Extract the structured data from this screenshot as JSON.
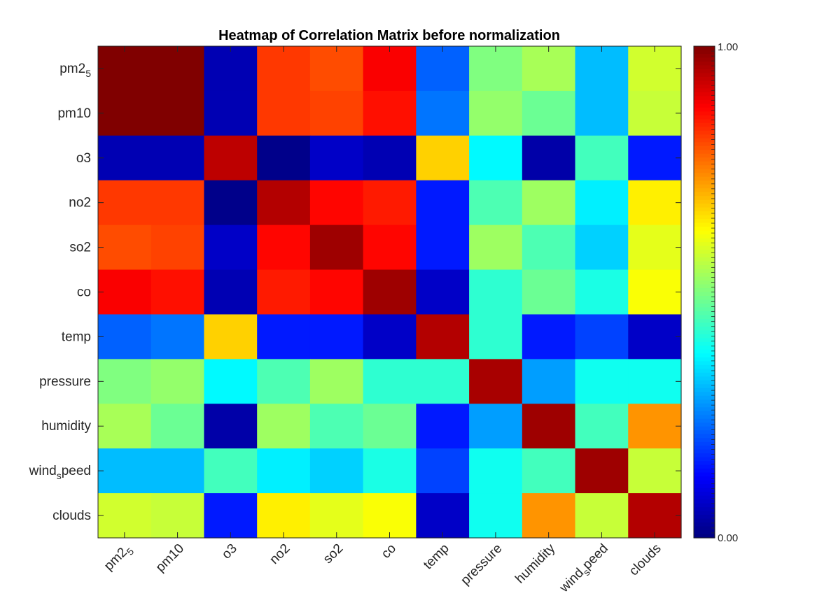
{
  "chart_data": {
    "type": "heatmap",
    "title": "Heatmap of Correlation Matrix before normalization",
    "colormap": "jet",
    "clim": [
      0,
      1
    ],
    "row_labels": [
      {
        "base": "pm2",
        "sub": "5"
      },
      {
        "base": "pm10",
        "sub": ""
      },
      {
        "base": "o3",
        "sub": ""
      },
      {
        "base": "no2",
        "sub": ""
      },
      {
        "base": "so2",
        "sub": ""
      },
      {
        "base": "co",
        "sub": ""
      },
      {
        "base": "temp",
        "sub": ""
      },
      {
        "base": "pressure",
        "sub": ""
      },
      {
        "base": "humidity",
        "sub": ""
      },
      {
        "base": "wind",
        "sub": "s",
        "tail": "peed"
      },
      {
        "base": "clouds",
        "sub": ""
      }
    ],
    "col_labels": [
      {
        "base": "pm2",
        "sub": "5"
      },
      {
        "base": "pm10",
        "sub": ""
      },
      {
        "base": "o3",
        "sub": ""
      },
      {
        "base": "no2",
        "sub": ""
      },
      {
        "base": "so2",
        "sub": ""
      },
      {
        "base": "co",
        "sub": ""
      },
      {
        "base": "temp",
        "sub": ""
      },
      {
        "base": "pressure",
        "sub": ""
      },
      {
        "base": "humidity",
        "sub": ""
      },
      {
        "base": "wind",
        "sub": "s",
        "tail": "peed"
      },
      {
        "base": "clouds",
        "sub": ""
      }
    ],
    "values": [
      [
        1.0,
        1.0,
        0.05,
        0.82,
        0.8,
        0.88,
        0.22,
        0.5,
        0.54,
        0.31,
        0.58
      ],
      [
        1.0,
        1.0,
        0.05,
        0.82,
        0.81,
        0.86,
        0.24,
        0.52,
        0.48,
        0.31,
        0.57
      ],
      [
        0.05,
        0.05,
        0.94,
        0.01,
        0.07,
        0.05,
        0.67,
        0.37,
        0.04,
        0.44,
        0.15
      ],
      [
        0.82,
        0.82,
        0.01,
        0.95,
        0.87,
        0.85,
        0.15,
        0.45,
        0.53,
        0.36,
        0.64
      ],
      [
        0.8,
        0.81,
        0.07,
        0.87,
        0.97,
        0.87,
        0.15,
        0.53,
        0.45,
        0.33,
        0.6
      ],
      [
        0.88,
        0.86,
        0.05,
        0.85,
        0.87,
        0.97,
        0.07,
        0.42,
        0.48,
        0.4,
        0.62
      ],
      [
        0.22,
        0.24,
        0.67,
        0.15,
        0.15,
        0.07,
        0.95,
        0.42,
        0.15,
        0.19,
        0.07
      ],
      [
        0.5,
        0.52,
        0.37,
        0.45,
        0.53,
        0.42,
        0.42,
        0.96,
        0.28,
        0.39,
        0.39
      ],
      [
        0.54,
        0.48,
        0.04,
        0.53,
        0.45,
        0.48,
        0.15,
        0.28,
        0.97,
        0.44,
        0.73
      ],
      [
        0.31,
        0.31,
        0.44,
        0.36,
        0.33,
        0.4,
        0.19,
        0.39,
        0.44,
        0.97,
        0.57
      ],
      [
        0.58,
        0.57,
        0.15,
        0.64,
        0.6,
        0.62,
        0.07,
        0.39,
        0.73,
        0.57,
        0.95
      ]
    ],
    "colorbar": {
      "min_label": "0.00",
      "max_label": "1.00"
    }
  }
}
